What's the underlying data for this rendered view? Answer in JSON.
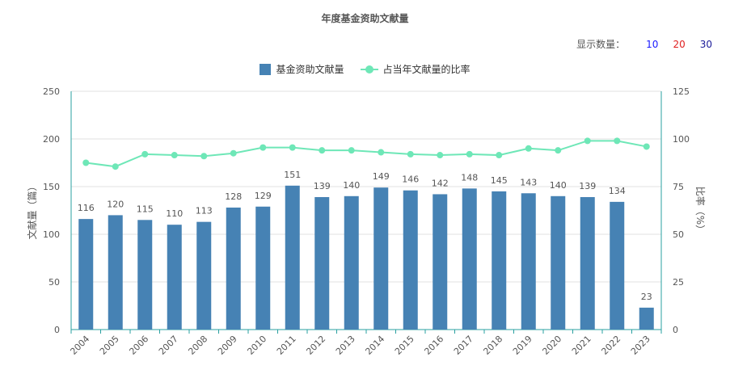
{
  "title": "年度基金资助文献量",
  "display_count": {
    "label": "显示数量：",
    "options": [
      {
        "label": "10",
        "color": "#1a1aff"
      },
      {
        "label": "20",
        "color": "#e02020"
      },
      {
        "label": "30",
        "color": "#1a1a99"
      }
    ]
  },
  "colors": {
    "bar": "#4682b4",
    "line": "#6ee7b7",
    "axis": "#2aa0a0",
    "grid": "#e0e0e0"
  },
  "chart_data": {
    "type": "bar",
    "title": "年度基金资助文献量",
    "categories": [
      "2004",
      "2005",
      "2006",
      "2007",
      "2008",
      "2009",
      "2010",
      "2011",
      "2012",
      "2013",
      "2014",
      "2015",
      "2016",
      "2017",
      "2018",
      "2019",
      "2020",
      "2021",
      "2022",
      "2023"
    ],
    "series": [
      {
        "name": "基金资助文献量",
        "type": "bar",
        "axis": "left",
        "values": [
          116,
          120,
          115,
          110,
          113,
          128,
          129,
          151,
          139,
          140,
          149,
          146,
          142,
          148,
          145,
          143,
          140,
          139,
          134,
          23
        ]
      },
      {
        "name": "占当年文献量的比率",
        "type": "line",
        "axis": "right",
        "values": [
          87.5,
          85.5,
          92,
          91.5,
          91,
          92.5,
          95.5,
          95.5,
          94,
          94,
          93,
          92,
          91.5,
          92,
          91.5,
          95,
          94,
          99,
          99,
          96
        ]
      }
    ],
    "ylabel": "文献量（篇）",
    "ylabel_right": "比率（%）",
    "ylim": [
      0,
      250
    ],
    "ylim_right": [
      0,
      125
    ],
    "yticks": [
      "0",
      "50",
      "100",
      "150",
      "200",
      "250"
    ],
    "yticks_right": [
      "0",
      "25",
      "50",
      "75",
      "100",
      "125"
    ],
    "grid": true,
    "legend": "top-center"
  }
}
